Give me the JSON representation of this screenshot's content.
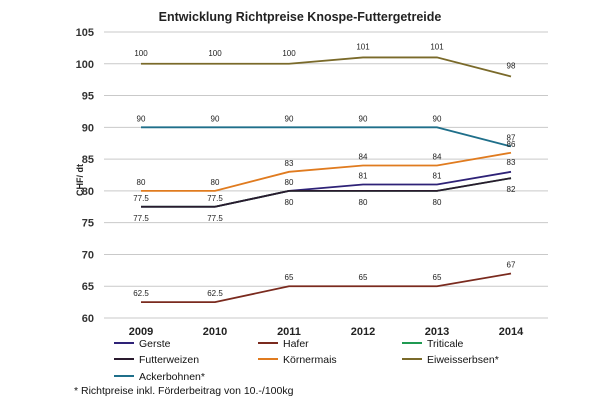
{
  "chart_data": {
    "type": "line",
    "title": "Entwicklung Richtpreise Knospe-Futtergetreide",
    "xlabel": "",
    "ylabel": "CHF/ dt",
    "categories": [
      "2009",
      "2010",
      "2011",
      "2012",
      "2013",
      "2014"
    ],
    "ylim": [
      60,
      105
    ],
    "yticks": [
      "60",
      "65",
      "70",
      "75",
      "80",
      "85",
      "90",
      "95",
      "100",
      "105"
    ],
    "grid": "horizontal",
    "legend_position": "bottom",
    "series": [
      {
        "name": "Gerste",
        "color": "#2e2277",
        "values": [
          77.5,
          77.5,
          80,
          81,
          81,
          83
        ],
        "labels": [
          "77.5",
          "77.5",
          "80",
          "81",
          "81",
          "83"
        ]
      },
      {
        "name": "Hafer",
        "color": "#7a2a1e",
        "values": [
          62.5,
          62.5,
          65,
          65,
          65,
          67
        ],
        "labels": [
          "62.5",
          "62.5",
          "65",
          "65",
          "65",
          "67"
        ]
      },
      {
        "name": "Triticale",
        "color": "#1f9a52",
        "values": [
          77.5,
          77.5,
          80,
          80,
          80,
          82
        ],
        "labels": [
          "77.5",
          "77.5",
          "80",
          "80",
          "80",
          "82"
        ]
      },
      {
        "name": "Futterweizen",
        "color": "#2a1a2e",
        "values": [
          77.5,
          77.5,
          80,
          80,
          80,
          82
        ],
        "labels": [
          "",
          "",
          "",
          "",
          "",
          ""
        ]
      },
      {
        "name": "Körnermais",
        "color": "#e07b1f",
        "values": [
          80,
          80,
          83,
          84,
          84,
          86
        ],
        "labels": [
          "80",
          "80",
          "83",
          "84",
          "84",
          "86"
        ]
      },
      {
        "name": "Eiweisserbsen*",
        "color": "#7a6a2a",
        "values": [
          100,
          100,
          100,
          101,
          101,
          98
        ],
        "labels": [
          "100",
          "100",
          "100",
          "101",
          "101",
          "98"
        ]
      },
      {
        "name": "Ackerbohnen*",
        "color": "#1f6f8a",
        "values": [
          90,
          90,
          90,
          90,
          90,
          87
        ],
        "labels": [
          "90",
          "90",
          "90",
          "90",
          "90",
          "87"
        ]
      }
    ]
  },
  "footnote": "* Richtpreise inkl. Förderbeitrag von 10.-/100kg"
}
